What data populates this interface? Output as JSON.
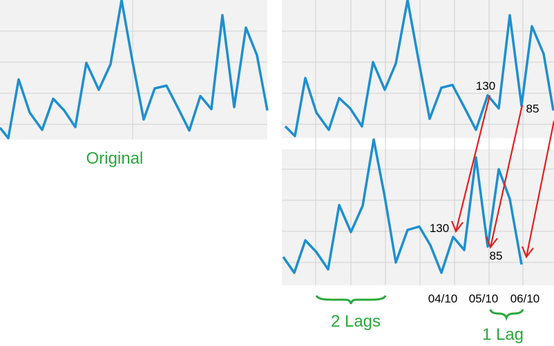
{
  "caption_original": "Original",
  "annotations": {
    "top_first": "130",
    "top_second": "85",
    "bottom_first": "130",
    "bottom_second": "85"
  },
  "dates": [
    "04/10",
    "05/10",
    "06/10"
  ],
  "braces": {
    "two": "2 Lags",
    "one": "1 Lag"
  }
}
